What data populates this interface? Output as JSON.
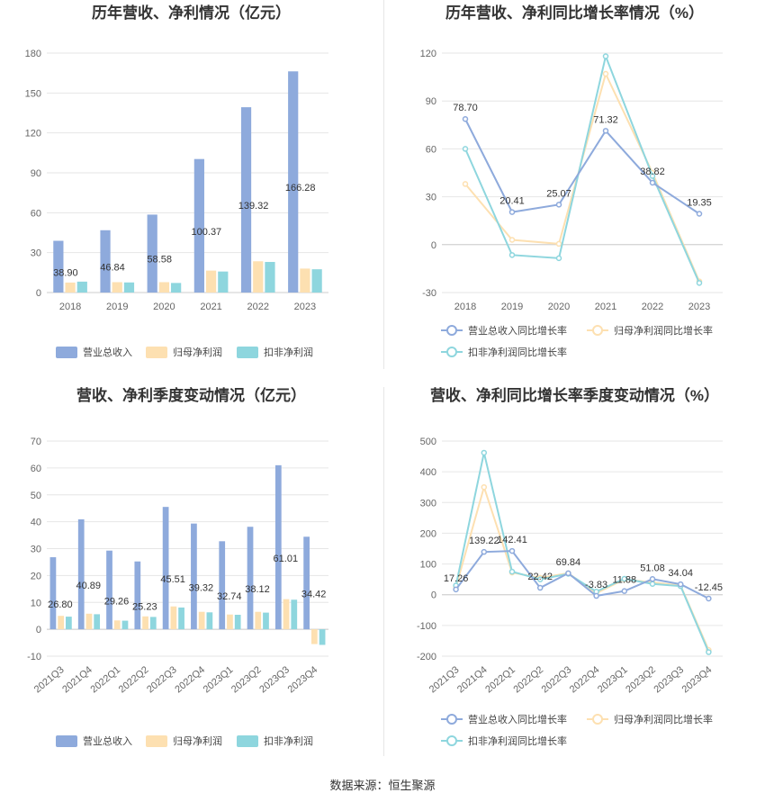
{
  "source": "数据来源：恒生聚源",
  "colors": {
    "revenue": "#8eaadc",
    "parent": "#fde0b1",
    "nonrec": "#8ed6de",
    "grid": "#e6e6e6",
    "axis": "#cccccc"
  },
  "chart_data": [
    {
      "type": "bar",
      "title": "历年营收、净利情况（亿元）",
      "categories": [
        "2018",
        "2019",
        "2020",
        "2021",
        "2022",
        "2023"
      ],
      "yticks": [
        0,
        30,
        60,
        90,
        120,
        150,
        180
      ],
      "ylim": [
        0,
        180
      ],
      "series": [
        {
          "name": "营业总收入",
          "values": [
            38.9,
            46.84,
            58.58,
            100.37,
            139.32,
            166.28
          ],
          "labels": [
            "38.90",
            "46.84",
            "58.58",
            "100.37",
            "139.32",
            "166.28"
          ]
        },
        {
          "name": "归母净利润",
          "values": [
            7.5,
            7.8,
            7.8,
            16.5,
            23.5,
            18.0
          ]
        },
        {
          "name": "扣非净利润",
          "values": [
            8.2,
            7.6,
            7.2,
            15.8,
            23.0,
            17.5
          ]
        }
      ],
      "legend": "bottom"
    },
    {
      "type": "line",
      "title": "历年营收、净利同比增长率情况（%）",
      "categories": [
        "2018",
        "2019",
        "2020",
        "2021",
        "2022",
        "2023"
      ],
      "yticks": [
        -30,
        0,
        30,
        60,
        90,
        120
      ],
      "ylim": [
        -30,
        120
      ],
      "series": [
        {
          "name": "营业总收入同比增长率",
          "values": [
            78.7,
            20.41,
            25.07,
            71.32,
            38.82,
            19.35
          ],
          "labels": [
            "78.70",
            "20.41",
            "25.07",
            "71.32",
            "38.82",
            "19.35"
          ]
        },
        {
          "name": "归母净利润同比增长率",
          "values": [
            38,
            3,
            0.5,
            107,
            45,
            -23
          ]
        },
        {
          "name": "扣非净利润同比增长率",
          "values": [
            60,
            -6.5,
            -8.5,
            118,
            43,
            -24
          ]
        }
      ],
      "legend": "bottom"
    },
    {
      "type": "bar",
      "title": "营收、净利季度变动情况（亿元）",
      "categories": [
        "2021Q3",
        "2021Q4",
        "2022Q1",
        "2022Q2",
        "2022Q3",
        "2022Q4",
        "2023Q1",
        "2023Q2",
        "2023Q3",
        "2023Q4"
      ],
      "yticks": [
        -10,
        0,
        10,
        20,
        30,
        40,
        50,
        60,
        70
      ],
      "ylim": [
        -10,
        70
      ],
      "series": [
        {
          "name": "营业总收入",
          "values": [
            26.8,
            40.89,
            29.26,
            25.23,
            45.51,
            39.32,
            32.74,
            38.12,
            61.01,
            34.42
          ],
          "labels": [
            "26.80",
            "40.89",
            "29.26",
            "25.23",
            "45.51",
            "39.32",
            "32.74",
            "38.12",
            "61.01",
            "34.42"
          ]
        },
        {
          "name": "归母净利润",
          "values": [
            5.0,
            5.8,
            3.3,
            4.8,
            8.5,
            6.5,
            5.5,
            6.5,
            11.2,
            -5.5
          ]
        },
        {
          "name": "扣非净利润",
          "values": [
            4.7,
            5.6,
            3.2,
            4.6,
            8.1,
            6.3,
            5.4,
            6.2,
            11.0,
            -5.8
          ]
        }
      ],
      "legend": "bottom"
    },
    {
      "type": "line",
      "title": "营收、净利同比增长率季度变动情况（%）",
      "categories": [
        "2021Q3",
        "2021Q4",
        "2022Q1",
        "2022Q2",
        "2022Q3",
        "2022Q4",
        "2023Q1",
        "2023Q2",
        "2023Q3",
        "2023Q4"
      ],
      "yticks": [
        -200,
        -100,
        0,
        100,
        200,
        300,
        400,
        500
      ],
      "ylim": [
        -200,
        500
      ],
      "series": [
        {
          "name": "营业总收入同比增长率",
          "values": [
            17.26,
            139.22,
            142.41,
            22.42,
            69.84,
            -3.83,
            11.88,
            51.08,
            34.04,
            -12.45
          ],
          "labels": [
            "17.26",
            "139.22",
            "142.41",
            "22.42",
            "69.84",
            "-3.83",
            "11.88",
            "51.08",
            "34.04",
            "-12.45"
          ]
        },
        {
          "name": "归母净利润同比增长率",
          "values": [
            25,
            350,
            72,
            55,
            70,
            5,
            50,
            40,
            30,
            -180
          ]
        },
        {
          "name": "扣非净利润同比增长率",
          "values": [
            30,
            462,
            75,
            50,
            68,
            10,
            52,
            35,
            28,
            -187
          ]
        }
      ],
      "legend": "bottom"
    }
  ]
}
